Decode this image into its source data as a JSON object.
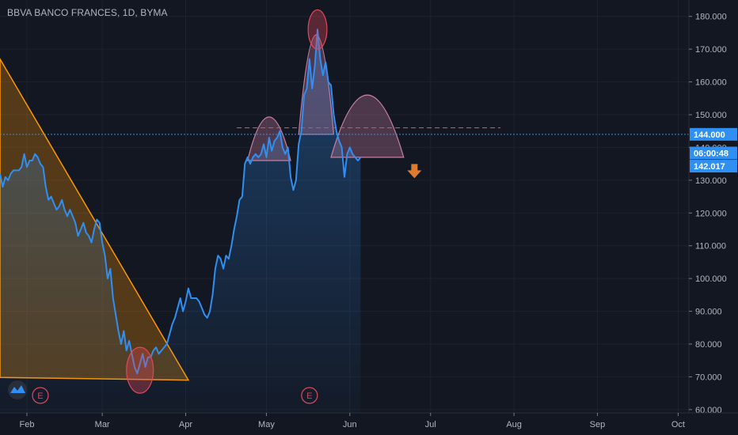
{
  "chart_data": {
    "type": "line",
    "title": "BBVA BANCO FRANCES, 1D, BYMA",
    "y_ticks": [
      "180.000",
      "170.000",
      "160.000",
      "150.000",
      "140.000",
      "130.000",
      "120.000",
      "110.000",
      "100.000",
      "90.000",
      "80.000",
      "70.000",
      "60.000"
    ],
    "y_tick_values": [
      180,
      170,
      160,
      150,
      140,
      130,
      120,
      110,
      100,
      90,
      80,
      70,
      60
    ],
    "ylim": [
      59,
      185
    ],
    "x_ticks": [
      "Feb",
      "Mar",
      "Apr",
      "May",
      "Jun",
      "Jul",
      "Aug",
      "Sep",
      "Oct"
    ],
    "x_tick_days": [
      32,
      60,
      91,
      121,
      152,
      182,
      213,
      244,
      274
    ],
    "xlim": [
      22,
      278
    ],
    "x_unit": "day of year",
    "series": [
      {
        "color": "#2f8ff2",
        "points": [
          [
            22,
            132
          ],
          [
            23,
            128
          ],
          [
            24,
            131
          ],
          [
            25,
            130
          ],
          [
            26,
            132
          ],
          [
            27,
            133
          ],
          [
            28,
            133
          ],
          [
            29,
            133
          ],
          [
            30,
            134
          ],
          [
            31,
            138
          ],
          [
            32,
            134
          ],
          [
            33,
            136
          ],
          [
            34,
            136
          ],
          [
            35,
            138
          ],
          [
            36,
            137
          ],
          [
            37,
            135
          ],
          [
            38,
            134
          ],
          [
            39,
            128
          ],
          [
            40,
            124
          ],
          [
            41,
            125
          ],
          [
            42,
            123
          ],
          [
            43,
            121
          ],
          [
            44,
            122
          ],
          [
            45,
            124
          ],
          [
            46,
            121
          ],
          [
            47,
            119
          ],
          [
            48,
            121
          ],
          [
            49,
            119
          ],
          [
            50,
            117
          ],
          [
            51,
            113
          ],
          [
            52,
            115
          ],
          [
            53,
            117
          ],
          [
            54,
            114
          ],
          [
            55,
            113
          ],
          [
            56,
            111
          ],
          [
            57,
            115
          ],
          [
            58,
            118
          ],
          [
            59,
            117
          ],
          [
            60,
            111
          ],
          [
            61,
            107
          ],
          [
            62,
            100
          ],
          [
            63,
            103
          ],
          [
            64,
            94
          ],
          [
            65,
            89
          ],
          [
            66,
            84
          ],
          [
            67,
            80
          ],
          [
            68,
            84
          ],
          [
            69,
            78
          ],
          [
            70,
            81
          ],
          [
            71,
            77
          ],
          [
            72,
            73
          ],
          [
            73,
            71
          ],
          [
            74,
            74
          ],
          [
            75,
            77
          ],
          [
            76,
            73
          ],
          [
            77,
            76
          ],
          [
            78,
            76
          ],
          [
            79,
            78
          ],
          [
            80,
            79
          ],
          [
            81,
            77
          ],
          [
            82,
            78
          ],
          [
            83,
            79
          ],
          [
            84,
            80
          ],
          [
            85,
            83
          ],
          [
            86,
            86
          ],
          [
            87,
            88
          ],
          [
            88,
            91
          ],
          [
            89,
            94
          ],
          [
            90,
            90
          ],
          [
            91,
            93
          ],
          [
            92,
            97
          ],
          [
            93,
            94
          ],
          [
            94,
            94
          ],
          [
            95,
            94
          ],
          [
            96,
            93
          ],
          [
            97,
            91
          ],
          [
            98,
            89
          ],
          [
            99,
            88
          ],
          [
            100,
            90
          ],
          [
            101,
            95
          ],
          [
            102,
            103
          ],
          [
            103,
            107
          ],
          [
            104,
            106
          ],
          [
            105,
            103
          ],
          [
            106,
            107
          ],
          [
            107,
            106
          ],
          [
            108,
            110
          ],
          [
            109,
            115
          ],
          [
            110,
            119
          ],
          [
            111,
            124
          ],
          [
            112,
            125
          ],
          [
            113,
            135
          ],
          [
            114,
            137
          ],
          [
            115,
            135
          ],
          [
            116,
            137
          ],
          [
            117,
            138
          ],
          [
            118,
            137
          ],
          [
            119,
            138
          ],
          [
            120,
            141
          ],
          [
            121,
            137
          ],
          [
            122,
            143
          ],
          [
            123,
            139
          ],
          [
            124,
            142
          ],
          [
            125,
            143
          ],
          [
            126,
            145
          ],
          [
            127,
            140
          ],
          [
            128,
            138
          ],
          [
            129,
            140
          ],
          [
            130,
            131
          ],
          [
            131,
            127
          ],
          [
            132,
            130
          ],
          [
            133,
            141
          ],
          [
            134,
            145
          ],
          [
            135,
            156
          ],
          [
            136,
            158
          ],
          [
            137,
            167
          ],
          [
            138,
            158
          ],
          [
            139,
            165
          ],
          [
            140,
            176
          ],
          [
            141,
            167
          ],
          [
            142,
            162
          ],
          [
            143,
            166
          ],
          [
            144,
            160
          ],
          [
            145,
            159
          ],
          [
            146,
            150
          ],
          [
            147,
            145
          ],
          [
            148,
            142
          ],
          [
            149,
            140
          ],
          [
            150,
            131
          ],
          [
            151,
            138
          ],
          [
            152,
            140
          ],
          [
            153,
            138
          ],
          [
            154,
            137
          ],
          [
            155,
            136
          ],
          [
            156,
            137
          ]
        ]
      }
    ],
    "last_price_label": "142.017",
    "countdown_label": "06:00:48",
    "current_price_label": "144.000",
    "event_markers": [
      "E",
      "E"
    ]
  },
  "colors": {
    "background": "#131722",
    "line": "#2f8ff2",
    "grid": "#1e222d",
    "triangle": "#ff9800",
    "arc": "#c87fa0",
    "ellipse": "#e0485a",
    "dashed": "#e0485a",
    "horizontal": "#2f8ff2",
    "arrow": "#e07a2c"
  },
  "icons": {
    "logo": "tradingview-logo-icon"
  }
}
